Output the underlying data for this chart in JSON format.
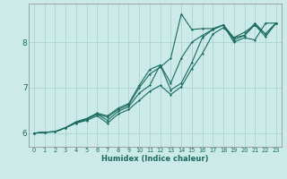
{
  "xlabel": "Humidex (Indice chaleur)",
  "ylabel": "",
  "bg_color": "#cceae8",
  "grid_color": "#aad4d0",
  "line_color": "#1a6b60",
  "spine_color": "#888888",
  "xlim": [
    -0.5,
    23.5
  ],
  "ylim": [
    5.7,
    8.85
  ],
  "yticks": [
    6,
    7,
    8
  ],
  "xticks": [
    0,
    1,
    2,
    3,
    4,
    5,
    6,
    7,
    8,
    9,
    10,
    11,
    12,
    13,
    14,
    15,
    16,
    17,
    18,
    19,
    20,
    21,
    22,
    23
  ],
  "lines": [
    [
      6.0,
      6.02,
      6.03,
      6.12,
      6.25,
      6.32,
      6.42,
      6.35,
      6.52,
      6.62,
      7.0,
      7.3,
      7.45,
      7.65,
      8.62,
      8.28,
      8.3,
      8.3,
      8.38,
      8.0,
      8.1,
      8.05,
      8.42,
      8.42
    ],
    [
      6.0,
      6.02,
      6.03,
      6.12,
      6.24,
      6.32,
      6.44,
      6.38,
      6.55,
      6.65,
      7.05,
      7.4,
      7.5,
      7.1,
      7.65,
      8.0,
      8.15,
      8.28,
      8.38,
      8.05,
      8.15,
      8.38,
      8.12,
      8.42
    ],
    [
      6.0,
      6.02,
      6.03,
      6.12,
      6.23,
      6.3,
      6.42,
      6.28,
      6.48,
      6.58,
      6.88,
      7.05,
      7.5,
      6.95,
      7.1,
      7.55,
      8.1,
      8.28,
      8.38,
      8.1,
      8.15,
      8.42,
      8.18,
      8.42
    ],
    [
      6.0,
      6.02,
      6.03,
      6.12,
      6.22,
      6.28,
      6.38,
      6.22,
      6.42,
      6.52,
      6.72,
      6.92,
      7.05,
      6.85,
      7.02,
      7.42,
      7.75,
      8.18,
      8.32,
      8.1,
      8.22,
      8.38,
      8.18,
      8.42
    ]
  ]
}
